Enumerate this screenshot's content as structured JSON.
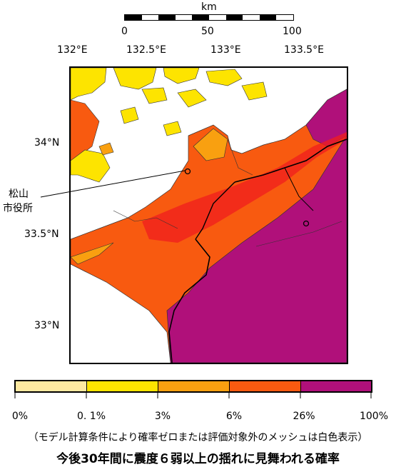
{
  "scale": {
    "unit": "km",
    "ticks": [
      "0",
      "50",
      "100"
    ]
  },
  "lon_labels": [
    "132°E",
    "132.5°E",
    "133°E",
    "133.5°E"
  ],
  "lat_labels": [
    "34°N",
    "33.5°N",
    "33°N"
  ],
  "city_label_line1": "松山",
  "city_label_line2": "市役所",
  "legend": {
    "colors": [
      "#fde8a0",
      "#fde400",
      "#f9a010",
      "#f85a10",
      "#f01e1e",
      "#b0107a"
    ],
    "labels": [
      "0%",
      "0. 1%",
      "3%",
      "6%",
      "26%",
      "100%"
    ]
  },
  "note": "（モデル計算条件により確率ゼロまたは評価対象外のメッシュは白色表示）",
  "caption": "今後30年間に震度６弱以上の揺れに見舞われる確率"
}
